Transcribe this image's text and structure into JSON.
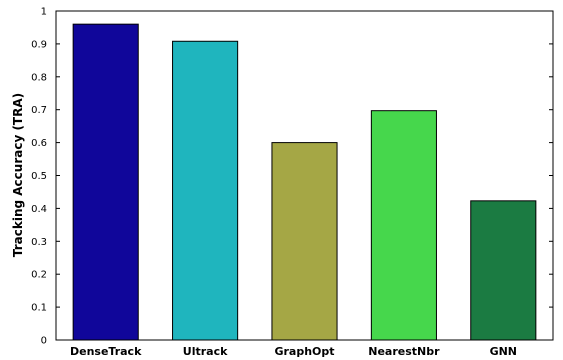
{
  "chart_data": {
    "type": "bar",
    "categories": [
      "DenseTrack",
      "Ultrack",
      "GraphOpt",
      "NearestNbr",
      "GNN"
    ],
    "values": [
      0.96,
      0.908,
      0.6,
      0.697,
      0.423
    ],
    "colors": [
      "#10069a",
      "#1fb5be",
      "#a5a745",
      "#46d74c",
      "#1b7b42"
    ],
    "title": "",
    "xlabel": "",
    "ylabel": "Tracking Accuracy (TRA)",
    "ylim": [
      0,
      1
    ],
    "yticks": [
      0,
      0.1,
      0.2,
      0.3,
      0.4,
      0.5,
      0.6,
      0.7,
      0.8,
      0.9,
      1
    ],
    "ytick_labels": [
      "0",
      "0.1",
      "0.2",
      "0.3",
      "0.4",
      "0.5",
      "0.6",
      "0.7",
      "0.8",
      "0.9",
      "1"
    ],
    "grid": false,
    "legend": "none"
  }
}
